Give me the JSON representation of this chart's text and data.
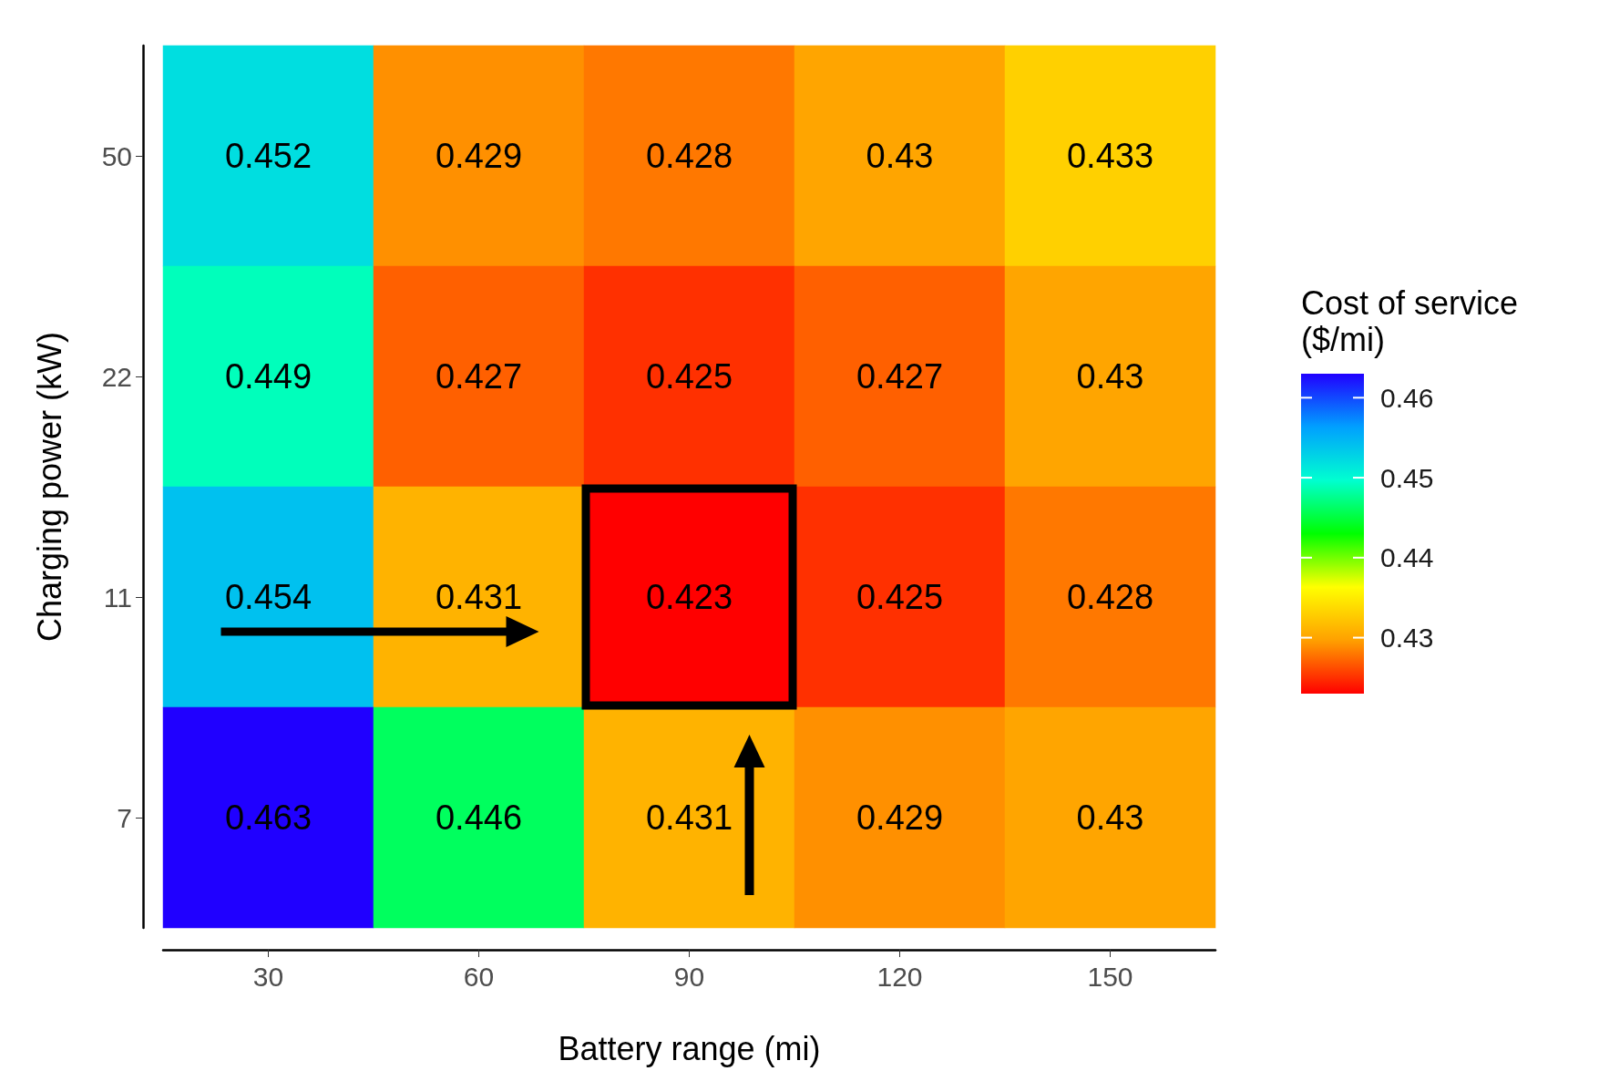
{
  "chart_data": {
    "type": "heatmap",
    "xlabel": "Battery range (mi)",
    "ylabel": "Charging power (kW)",
    "clabel": "Cost of service\n($/mi)",
    "categories": [
      "30",
      "60",
      "90",
      "120",
      "150"
    ],
    "y_categories": [
      "50",
      "22",
      "11",
      "7"
    ],
    "cells": [
      [
        0.452,
        0.429,
        0.428,
        0.43,
        0.433
      ],
      [
        0.449,
        0.427,
        0.425,
        0.427,
        0.43
      ],
      [
        0.454,
        0.431,
        0.423,
        0.425,
        0.428
      ],
      [
        0.463,
        0.446,
        0.431,
        0.429,
        0.43
      ]
    ],
    "data_labels": true,
    "clim": [
      0.423,
      0.463
    ],
    "cticks": [
      0.43,
      0.44,
      0.45,
      0.46
    ],
    "colors": [
      "#ff0000",
      "#ffa000",
      "#ffff00",
      "#00ff00",
      "#00ffd0",
      "#00a0ff",
      "#2000ff"
    ]
  }
}
